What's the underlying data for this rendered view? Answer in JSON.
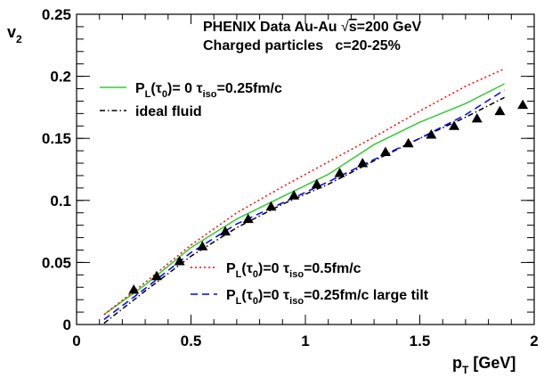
{
  "chart_data": {
    "type": "line",
    "title_line1_pre": "PHENIX Data Au-Au ",
    "title_line1_sqrt": "s",
    "title_line1_post": "=200 GeV",
    "title_line2": "Charged particles   c=20-25%",
    "xlabel_main": "p",
    "xlabel_sub": "T",
    "xlabel_unit": " [GeV]",
    "ylabel_main": "v",
    "ylabel_sub": "2",
    "xlim": [
      0,
      2
    ],
    "ylim": [
      0,
      0.25
    ],
    "x_ticks": [
      0,
      0.5,
      1,
      1.5,
      2
    ],
    "x_tick_labels": [
      "0",
      "0.5",
      "1",
      "1.5",
      "2"
    ],
    "y_ticks": [
      0,
      0.05,
      0.1,
      0.15,
      0.2,
      0.25
    ],
    "y_tick_labels": [
      "0",
      "0.05",
      "0.1",
      "0.15",
      "0.2",
      "0.25"
    ],
    "grid": false,
    "series": [
      {
        "key": "green",
        "color": "#33cc33",
        "style": "solid",
        "legend": {
          "pre": "P",
          "sub1": "L",
          "mid": "(τ",
          "sub2": "0",
          "mid2": ")= 0  τ",
          "sub3": "iso",
          "post": "=0.25fm/c"
        },
        "x": [
          0.12,
          0.3,
          0.5,
          0.7,
          0.9,
          1.1,
          1.3,
          1.5,
          1.7,
          1.87
        ],
        "y": [
          0.008,
          0.032,
          0.062,
          0.085,
          0.103,
          0.121,
          0.145,
          0.163,
          0.178,
          0.194
        ]
      },
      {
        "key": "black",
        "color": "#000000",
        "style": "dashdot",
        "legend": {
          "text": "ideal fluid"
        },
        "x": [
          0.12,
          0.3,
          0.5,
          0.7,
          0.9,
          1.1,
          1.3,
          1.5,
          1.7,
          1.87
        ],
        "y": [
          0.001,
          0.027,
          0.055,
          0.078,
          0.097,
          0.113,
          0.132,
          0.15,
          0.167,
          0.183
        ]
      },
      {
        "key": "red",
        "color": "#ff0000",
        "style": "dotted",
        "legend": {
          "pre": "P",
          "sub1": "L",
          "mid": "(τ",
          "sub2": "0",
          "mid2": ")=0  τ",
          "sub3": "iso",
          "post": "=0.5fm/c"
        },
        "x": [
          0.12,
          0.3,
          0.5,
          0.7,
          0.9,
          1.1,
          1.3,
          1.5,
          1.7,
          1.87
        ],
        "y": [
          0.008,
          0.034,
          0.064,
          0.09,
          0.111,
          0.131,
          0.151,
          0.172,
          0.192,
          0.206
        ]
      },
      {
        "key": "blue",
        "color": "#0000ff",
        "style": "dashed",
        "legend": {
          "pre": "P",
          "sub1": "L",
          "mid": "(τ",
          "sub2": "0",
          "mid2": ")=0  τ",
          "sub3": "iso",
          "post": "=0.25fm/c  large tilt"
        },
        "x": [
          0.12,
          0.3,
          0.5,
          0.7,
          0.9,
          1.1,
          1.3,
          1.5,
          1.7,
          1.87
        ],
        "y": [
          0.004,
          0.029,
          0.058,
          0.081,
          0.098,
          0.115,
          0.133,
          0.15,
          0.169,
          0.189
        ]
      }
    ],
    "data_points": {
      "name": "PHENIX",
      "marker": "triangle",
      "x": [
        0.25,
        0.35,
        0.45,
        0.55,
        0.65,
        0.75,
        0.85,
        0.95,
        1.05,
        1.15,
        1.25,
        1.35,
        1.45,
        1.55,
        1.65,
        1.75,
        1.85,
        1.95
      ],
      "y": [
        0.028,
        0.039,
        0.051,
        0.063,
        0.075,
        0.085,
        0.095,
        0.104,
        0.113,
        0.122,
        0.13,
        0.139,
        0.146,
        0.153,
        0.16,
        0.166,
        0.172,
        0.177
      ]
    }
  }
}
